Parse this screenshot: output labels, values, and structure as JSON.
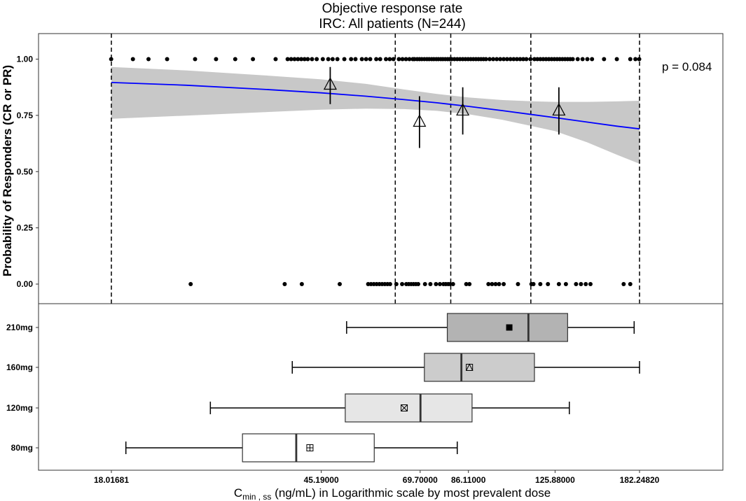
{
  "chart_data": {
    "type": "scatter",
    "title": "Objective response rate",
    "subtitle": "IRC: All patients (N=244)",
    "annotation": "p = 0.084",
    "ylabel": "Probability of Responders (CR or PR)",
    "xlabel_main": "C",
    "xlabel_sub": "min , ss",
    "xlabel_rest": " (ng/mL) in Logarithmic scale by most prevalent dose",
    "x_scale": "log",
    "x_ticks": [
      {
        "value": 18.01681,
        "label": "18.01681"
      },
      {
        "value": 45.19,
        "label": "45.19000"
      },
      {
        "value": 69.7,
        "label": "69.70000"
      },
      {
        "value": 86.11,
        "label": "86.11000"
      },
      {
        "value": 125.88,
        "label": "125.88000"
      },
      {
        "value": 182.2482,
        "label": "182.24820"
      }
    ],
    "y_ticks": [
      {
        "value": 1.0,
        "label": "1.00"
      },
      {
        "value": 0.75,
        "label": "0.75"
      },
      {
        "value": 0.5,
        "label": "0.50"
      },
      {
        "value": 0.25,
        "label": "0.25"
      },
      {
        "value": 0.0,
        "label": "0.00"
      }
    ],
    "quartile_cuts": [
      18.01681,
      62.5,
      79.7,
      113.2,
      182.2482
    ],
    "logistic_fit": {
      "x": [
        18.01681,
        25,
        35,
        45.19,
        55,
        65,
        75,
        86.11,
        100,
        115,
        125.88,
        145,
        165,
        182.2482
      ],
      "y": [
        0.896,
        0.884,
        0.866,
        0.85,
        0.835,
        0.82,
        0.806,
        0.79,
        0.771,
        0.752,
        0.74,
        0.72,
        0.702,
        0.69
      ],
      "ci_lower": [
        0.735,
        0.749,
        0.764,
        0.775,
        0.78,
        0.778,
        0.77,
        0.755,
        0.73,
        0.7,
        0.68,
        0.63,
        0.575,
        0.535
      ],
      "ci_upper": [
        0.965,
        0.95,
        0.928,
        0.91,
        0.89,
        0.865,
        0.845,
        0.83,
        0.818,
        0.812,
        0.81,
        0.81,
        0.812,
        0.815
      ]
    },
    "quartile_observed": [
      {
        "x": 47.0,
        "y": 0.885,
        "lower": 0.8,
        "upper": 0.965
      },
      {
        "x": 69.5,
        "y": 0.72,
        "lower": 0.605,
        "upper": 0.835
      },
      {
        "x": 84.0,
        "y": 0.77,
        "lower": 0.665,
        "upper": 0.875
      },
      {
        "x": 128.0,
        "y": 0.77,
        "lower": 0.665,
        "upper": 0.875
      }
    ],
    "responder_x": [
      18.0,
      19.8,
      21.2,
      23.0,
      26.0,
      28.5,
      31.0,
      33.5,
      37.0,
      39.0,
      39.6,
      40.2,
      40.8,
      41.4,
      42.0,
      42.6,
      43.4,
      44.3,
      45.5,
      46.6,
      47.5,
      48.5,
      50.0,
      51.5,
      52.5,
      54.0,
      55.0,
      56.0,
      57.5,
      58.5,
      60.0,
      61.0,
      62.0,
      63.5,
      64.5,
      65.5,
      66.5,
      67.5,
      68.0,
      68.8,
      69.5,
      70.2,
      71.0,
      71.8,
      72.5,
      73.3,
      74.0,
      74.8,
      75.5,
      76.3,
      77.0,
      77.8,
      78.6,
      79.3,
      80.0,
      81.0,
      82.0,
      83.0,
      84.0,
      85.0,
      86.0,
      87.0,
      88.0,
      89.0,
      90.0,
      91.0,
      92.0,
      93.0,
      94.5,
      96.0,
      97.5,
      99.0,
      100.5,
      102.0,
      103.5,
      105.0,
      106.5,
      108.0,
      109.5,
      111.0,
      113.0,
      115.0,
      116.5,
      118.0,
      119.5,
      121.0,
      122.5,
      124.0,
      125.5,
      127.0,
      128.5,
      130.0,
      131.5,
      133.0,
      134.5,
      136.0,
      139.0,
      142.0,
      145.0,
      148.0,
      156.0,
      165.0,
      175.0,
      179.0,
      182.0
    ],
    "nonresponder_x": [
      25.5,
      38.5,
      41.5,
      49.0,
      55.5,
      56.2,
      56.9,
      57.6,
      58.3,
      59.0,
      59.7,
      60.4,
      61.1,
      62.8,
      64.4,
      65.6,
      66.3,
      67.0,
      67.7,
      68.4,
      69.1,
      71.2,
      72.9,
      74.7,
      76.0,
      77.2,
      78.0,
      78.8,
      79.5,
      80.5,
      85.3,
      86.5,
      94.0,
      95.5,
      97.0,
      98.5,
      100.5,
      107.0,
      113.5,
      114.5,
      118.0,
      122.0,
      128.0,
      132.0,
      138.0,
      141.0,
      144.0,
      147.0,
      170.0,
      175.0
    ],
    "boxplots": [
      {
        "label": "210mg",
        "whisker_low": 50.5,
        "q1": 78.5,
        "median": 112.0,
        "q3": 133.0,
        "whisker_high": 178.0,
        "mean": 103.0,
        "mean_marker": "filled-square",
        "fill": "#b3b3b3"
      },
      {
        "label": "160mg",
        "whisker_low": 39.8,
        "q1": 71.0,
        "median": 83.5,
        "q3": 115.0,
        "whisker_high": 182.2482,
        "mean": 86.5,
        "mean_marker": "square-triangle",
        "fill": "#cccccc"
      },
      {
        "label": "120mg",
        "whisker_low": 27.8,
        "q1": 50.2,
        "median": 69.8,
        "q3": 87.5,
        "whisker_high": 134.0,
        "mean": 65.0,
        "mean_marker": "square-x",
        "fill": "#e6e6e6"
      },
      {
        "label": "80mg",
        "whisker_low": 19.2,
        "q1": 32.0,
        "median": 40.5,
        "q3": 57.0,
        "whisker_high": 82.0,
        "mean": 43.0,
        "mean_marker": "square-plus",
        "fill": "#ffffff"
      }
    ],
    "colors": {
      "fit_line": "#0000ff",
      "ci_band": "#c8c8c8",
      "points": "#000000"
    }
  }
}
